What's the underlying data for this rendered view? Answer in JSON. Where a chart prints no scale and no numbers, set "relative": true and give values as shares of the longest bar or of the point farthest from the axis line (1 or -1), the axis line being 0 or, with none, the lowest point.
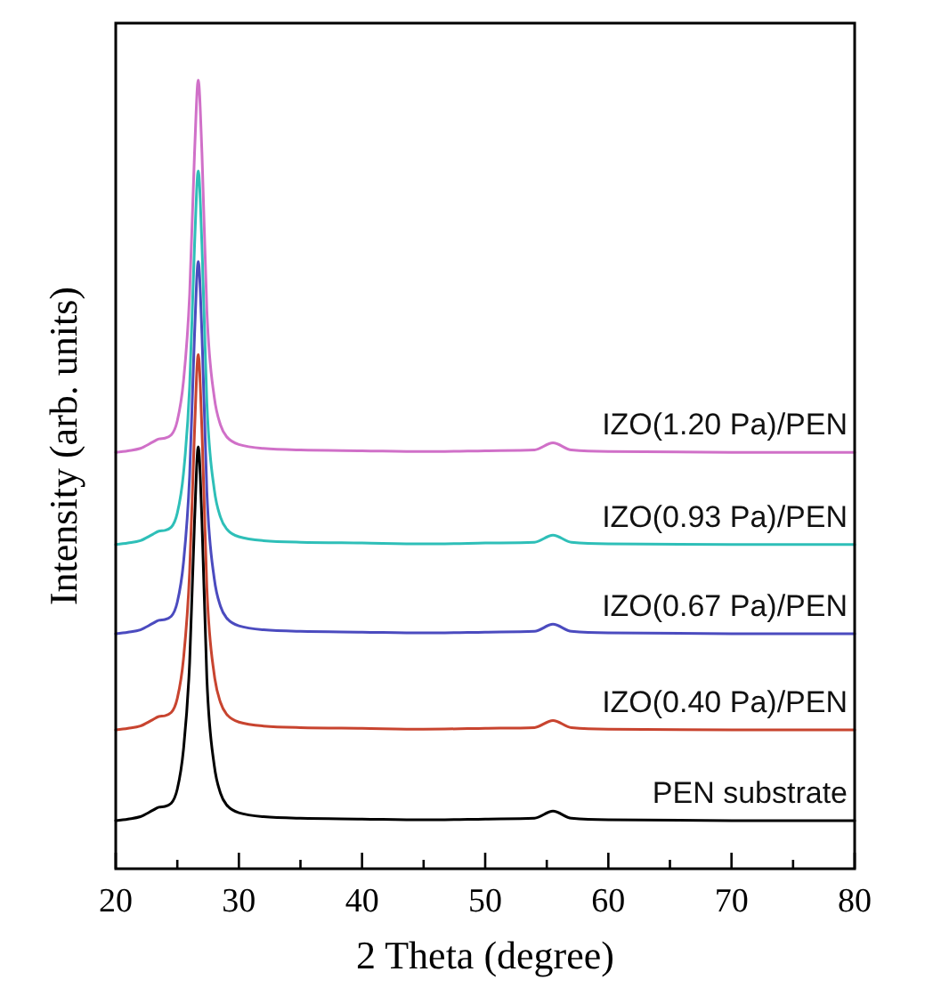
{
  "chart_data": {
    "type": "line",
    "relative": true,
    "xlabel": "2 Theta (degree)",
    "ylabel": "Intensity (arb. units)",
    "xlim": [
      20,
      80
    ],
    "xticks": [
      20,
      {
        "value": 25,
        "label": null
      },
      30,
      {
        "value": 35,
        "label": null
      },
      40,
      {
        "value": 45,
        "label": null
      },
      50,
      {
        "value": 55,
        "label": null
      },
      60,
      {
        "value": 65,
        "label": null
      },
      70,
      {
        "value": 75,
        "label": null
      },
      80
    ],
    "tick_labels": "x",
    "x": [
      20,
      21,
      22,
      23,
      23.5,
      24,
      24.5,
      25,
      25.5,
      26,
      26.4,
      26.7,
      27,
      27.4,
      28,
      28.5,
      29,
      30,
      32,
      35,
      40,
      45,
      50,
      54,
      55.5,
      57,
      60,
      70,
      80
    ],
    "series": [
      {
        "name": "PEN substrate",
        "color": "#000000",
        "values": [
          0.061,
          0.063,
          0.066,
          0.074,
          0.078,
          0.079,
          0.083,
          0.101,
          0.151,
          0.261,
          0.441,
          0.535,
          0.441,
          0.241,
          0.131,
          0.096,
          0.081,
          0.071,
          0.066,
          0.064,
          0.063,
          0.062,
          0.063,
          0.064,
          0.073,
          0.064,
          0.062,
          0.061,
          0.061
        ]
      },
      {
        "name": "IZO(0.40 Pa)/PEN",
        "color": "#c8442f",
        "values": [
          0.176,
          0.178,
          0.181,
          0.189,
          0.193,
          0.194,
          0.198,
          0.216,
          0.266,
          0.376,
          0.556,
          0.652,
          0.556,
          0.356,
          0.246,
          0.211,
          0.196,
          0.186,
          0.181,
          0.179,
          0.178,
          0.177,
          0.178,
          0.179,
          0.188,
          0.179,
          0.177,
          0.176,
          0.176
        ]
      },
      {
        "name": "IZO(0.67 Pa)/PEN",
        "color": "#4b4bbf",
        "values": [
          0.298,
          0.3,
          0.303,
          0.311,
          0.315,
          0.316,
          0.32,
          0.338,
          0.388,
          0.498,
          0.678,
          0.77,
          0.678,
          0.478,
          0.368,
          0.333,
          0.318,
          0.308,
          0.303,
          0.301,
          0.3,
          0.299,
          0.3,
          0.301,
          0.31,
          0.301,
          0.299,
          0.298,
          0.298
        ]
      },
      {
        "name": "IZO(0.93 Pa)/PEN",
        "color": "#2ebfb8",
        "values": [
          0.411,
          0.413,
          0.416,
          0.424,
          0.428,
          0.429,
          0.433,
          0.451,
          0.501,
          0.611,
          0.791,
          0.885,
          0.791,
          0.591,
          0.481,
          0.446,
          0.431,
          0.421,
          0.416,
          0.414,
          0.413,
          0.412,
          0.413,
          0.414,
          0.423,
          0.414,
          0.412,
          0.411,
          0.411
        ]
      },
      {
        "name": "IZO(1.20 Pa)/PEN",
        "color": "#d070c8",
        "values": [
          0.528,
          0.53,
          0.533,
          0.541,
          0.545,
          0.546,
          0.55,
          0.568,
          0.618,
          0.728,
          0.908,
          1,
          0.908,
          0.708,
          0.598,
          0.563,
          0.548,
          0.538,
          0.533,
          0.531,
          0.53,
          0.529,
          0.53,
          0.531,
          0.54,
          0.531,
          0.529,
          0.528,
          0.528
        ]
      }
    ]
  }
}
